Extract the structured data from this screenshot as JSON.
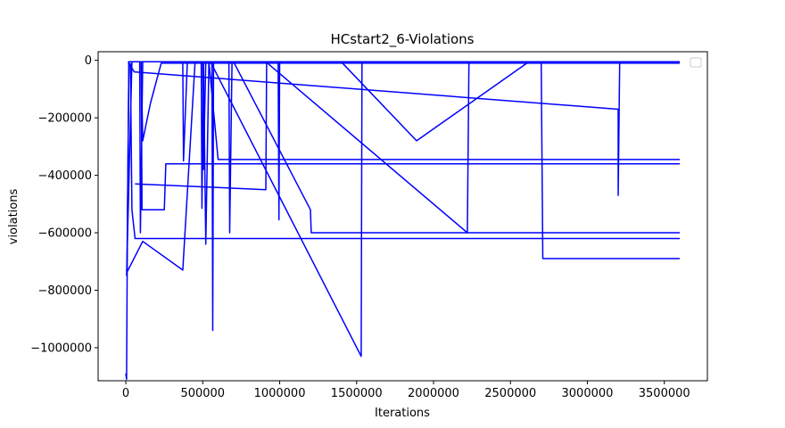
{
  "chart_data": {
    "type": "line",
    "title": "HCstart2_6-Violations",
    "xlabel": "Iterations",
    "ylabel": "violations",
    "xlim": [
      -180000,
      3780000
    ],
    "ylim": [
      -1115000,
      30000
    ],
    "xticks": [
      0,
      500000,
      1000000,
      1500000,
      2000000,
      2500000,
      3000000,
      3500000
    ],
    "xtick_labels": [
      "0",
      "500000",
      "1000000",
      "1500000",
      "2000000",
      "2500000",
      "3000000",
      "3500000"
    ],
    "yticks": [
      0,
      -200000,
      -400000,
      -600000,
      -800000,
      -1000000
    ],
    "ytick_labels": [
      "0",
      "−200000",
      "−400000",
      "−600000",
      "−800000",
      "−1000000"
    ],
    "grid": false,
    "legend": {
      "placement": "top-right",
      "entries": []
    },
    "color": "#0000ff",
    "series": [
      {
        "points": [
          [
            0,
            -1090000
          ],
          [
            5000,
            -1110000
          ],
          [
            10000,
            -600000
          ],
          [
            20000,
            -5000
          ],
          [
            3600000,
            -5000
          ]
        ]
      },
      {
        "points": [
          [
            8000,
            -700000
          ],
          [
            20000,
            -5000
          ],
          [
            100000,
            -5000
          ],
          [
            110000,
            -280000
          ],
          [
            160000,
            -150000
          ],
          [
            230000,
            -10000
          ],
          [
            3600000,
            -10000
          ]
        ]
      },
      {
        "points": [
          [
            30000,
            -10000
          ],
          [
            40000,
            -520000
          ],
          [
            60000,
            -620000
          ],
          [
            3600000,
            -620000
          ]
        ]
      },
      {
        "points": [
          [
            15000,
            -5000
          ],
          [
            55000,
            -40000
          ],
          [
            3200000,
            -170000
          ],
          [
            3200000,
            -470000
          ],
          [
            3210000,
            -5000
          ],
          [
            3600000,
            -5000
          ]
        ]
      },
      {
        "points": [
          [
            60000,
            -430000
          ],
          [
            910000,
            -450000
          ],
          [
            915000,
            -5000
          ],
          [
            990000,
            -5000
          ],
          [
            995000,
            -555000
          ],
          [
            1000000,
            -5000
          ],
          [
            3600000,
            -5000
          ]
        ]
      },
      {
        "points": [
          [
            70000,
            -5000
          ],
          [
            90000,
            -5000
          ],
          [
            95000,
            -600000
          ],
          [
            110000,
            -5000
          ],
          [
            1400000,
            -5000
          ],
          [
            1890000,
            -280000
          ],
          [
            2620000,
            -5000
          ],
          [
            3600000,
            -5000
          ]
        ]
      },
      {
        "points": [
          [
            100000,
            -5000
          ],
          [
            105000,
            -520000
          ],
          [
            250000,
            -520000
          ],
          [
            260000,
            -360000
          ],
          [
            3600000,
            -360000
          ]
        ]
      },
      {
        "points": [
          [
            20000,
            -5000
          ],
          [
            500000,
            -5000
          ],
          [
            505000,
            -380000
          ],
          [
            520000,
            -5000
          ],
          [
            560000,
            -5000
          ],
          [
            565000,
            -940000
          ],
          [
            570000,
            -5000
          ],
          [
            3600000,
            -5000
          ]
        ]
      },
      {
        "points": [
          [
            130000,
            -5000
          ],
          [
            370000,
            -5000
          ],
          [
            375000,
            -350000
          ],
          [
            400000,
            -5000
          ],
          [
            3600000,
            -5000
          ]
        ]
      },
      {
        "points": [
          [
            5000,
            -740000
          ],
          [
            110000,
            -630000
          ],
          [
            370000,
            -730000
          ],
          [
            450000,
            -5000
          ],
          [
            3600000,
            -5000
          ]
        ]
      },
      {
        "points": [
          [
            5000,
            -750000
          ],
          [
            40000,
            -5000
          ],
          [
            3600000,
            -5000
          ]
        ]
      },
      {
        "points": [
          [
            540000,
            -5000
          ],
          [
            600000,
            -345000
          ],
          [
            3600000,
            -345000
          ]
        ]
      },
      {
        "points": [
          [
            550000,
            -5000
          ],
          [
            1530000,
            -1030000
          ],
          [
            1535000,
            -5000
          ],
          [
            3600000,
            -5000
          ]
        ]
      },
      {
        "points": [
          [
            670000,
            -5000
          ],
          [
            675000,
            -600000
          ],
          [
            690000,
            -5000
          ],
          [
            3600000,
            -5000
          ]
        ]
      },
      {
        "points": [
          [
            700000,
            -5000
          ],
          [
            1200000,
            -520000
          ],
          [
            1205000,
            -600000
          ],
          [
            3600000,
            -600000
          ]
        ]
      },
      {
        "points": [
          [
            910000,
            -5000
          ],
          [
            2220000,
            -600000
          ],
          [
            2230000,
            -5000
          ],
          [
            2700000,
            -5000
          ],
          [
            2710000,
            -690000
          ],
          [
            3600000,
            -690000
          ]
        ]
      },
      {
        "points": [
          [
            440000,
            -5000
          ],
          [
            490000,
            -5000
          ],
          [
            495000,
            -515000
          ],
          [
            505000,
            -5000
          ],
          [
            520000,
            -640000
          ],
          [
            540000,
            -5000
          ],
          [
            3600000,
            -5000
          ]
        ]
      }
    ]
  }
}
